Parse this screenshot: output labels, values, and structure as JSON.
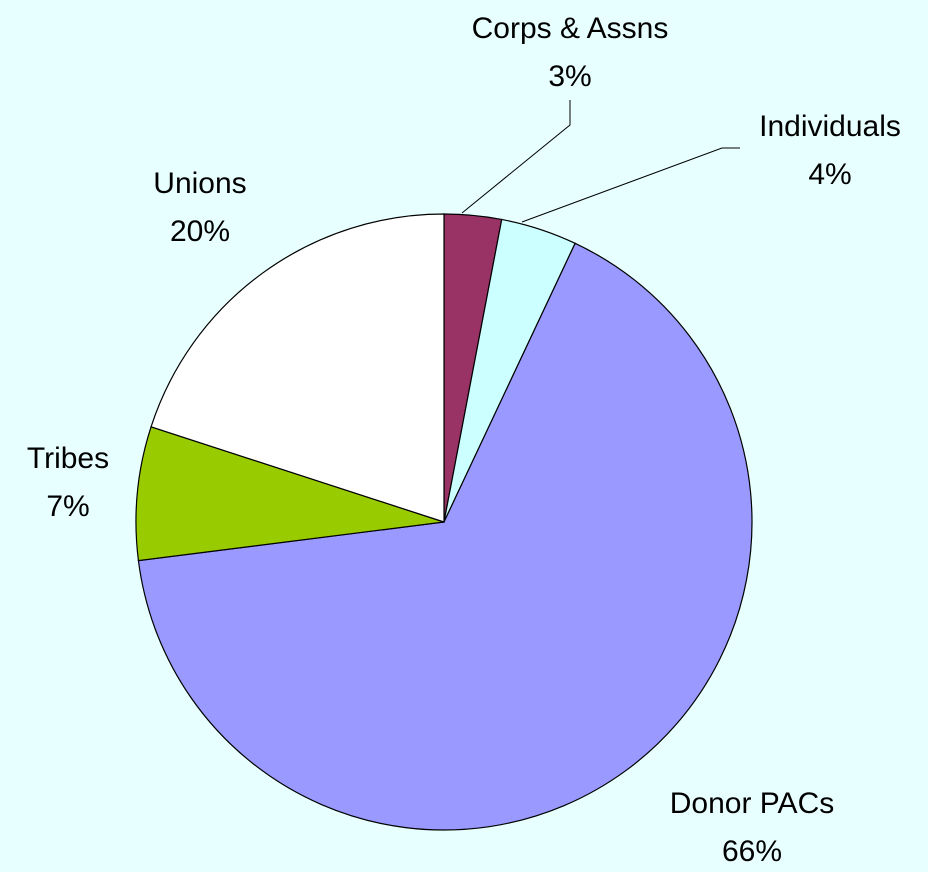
{
  "chart_data": {
    "type": "pie",
    "categories": [
      "Corps & Assns",
      "Individuals",
      "Donor PACs",
      "Tribes",
      "Unions"
    ],
    "values": [
      3,
      4,
      66,
      7,
      20
    ],
    "value_labels": [
      "3%",
      "4%",
      "66%",
      "7%",
      "20%"
    ],
    "colors": [
      "#993366",
      "#ccffff",
      "#9999ff",
      "#99cc00",
      "#ffffff"
    ]
  }
}
